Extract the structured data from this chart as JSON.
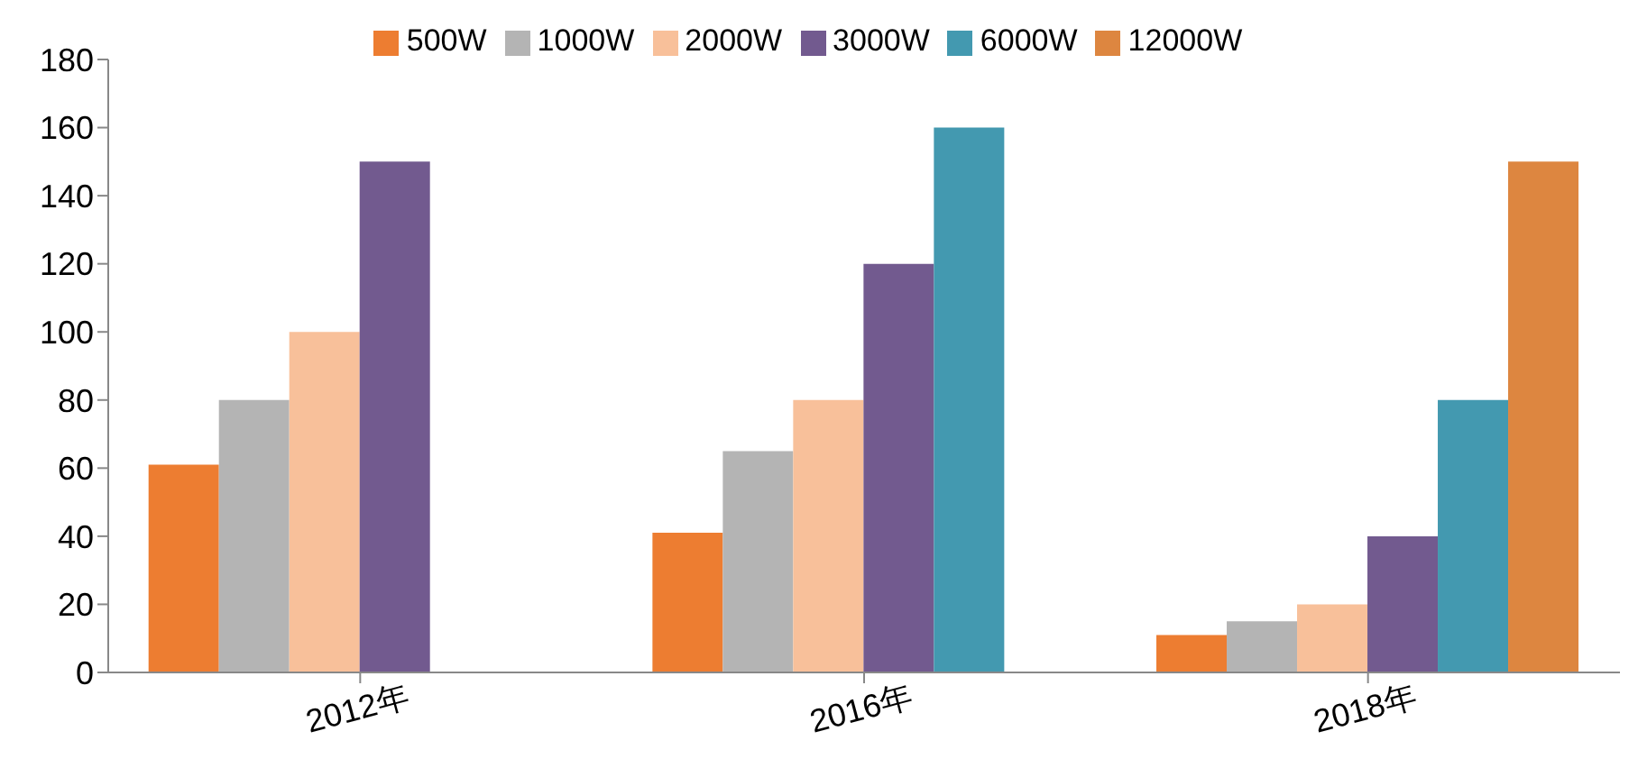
{
  "chart_data": {
    "type": "bar",
    "categories": [
      "2012年",
      "2016年",
      "2018年"
    ],
    "series": [
      {
        "name": "500W",
        "color": "#ed7d31",
        "values": [
          61,
          41,
          11
        ]
      },
      {
        "name": "1000W",
        "color": "#b4b4b4",
        "values": [
          80,
          65,
          15
        ]
      },
      {
        "name": "2000W",
        "color": "#f8c09a",
        "values": [
          100,
          80,
          20
        ]
      },
      {
        "name": "3000W",
        "color": "#725a8f",
        "values": [
          150,
          120,
          40
        ]
      },
      {
        "name": "6000W",
        "color": "#4399b0",
        "values": [
          null,
          160,
          80
        ]
      },
      {
        "name": "12000W",
        "color": "#dd8640",
        "values": [
          null,
          null,
          150
        ]
      }
    ],
    "ylim": [
      0,
      180
    ],
    "yticks": [
      0,
      20,
      40,
      60,
      80,
      100,
      120,
      140,
      160,
      180
    ],
    "grid": false,
    "legend": "top"
  }
}
